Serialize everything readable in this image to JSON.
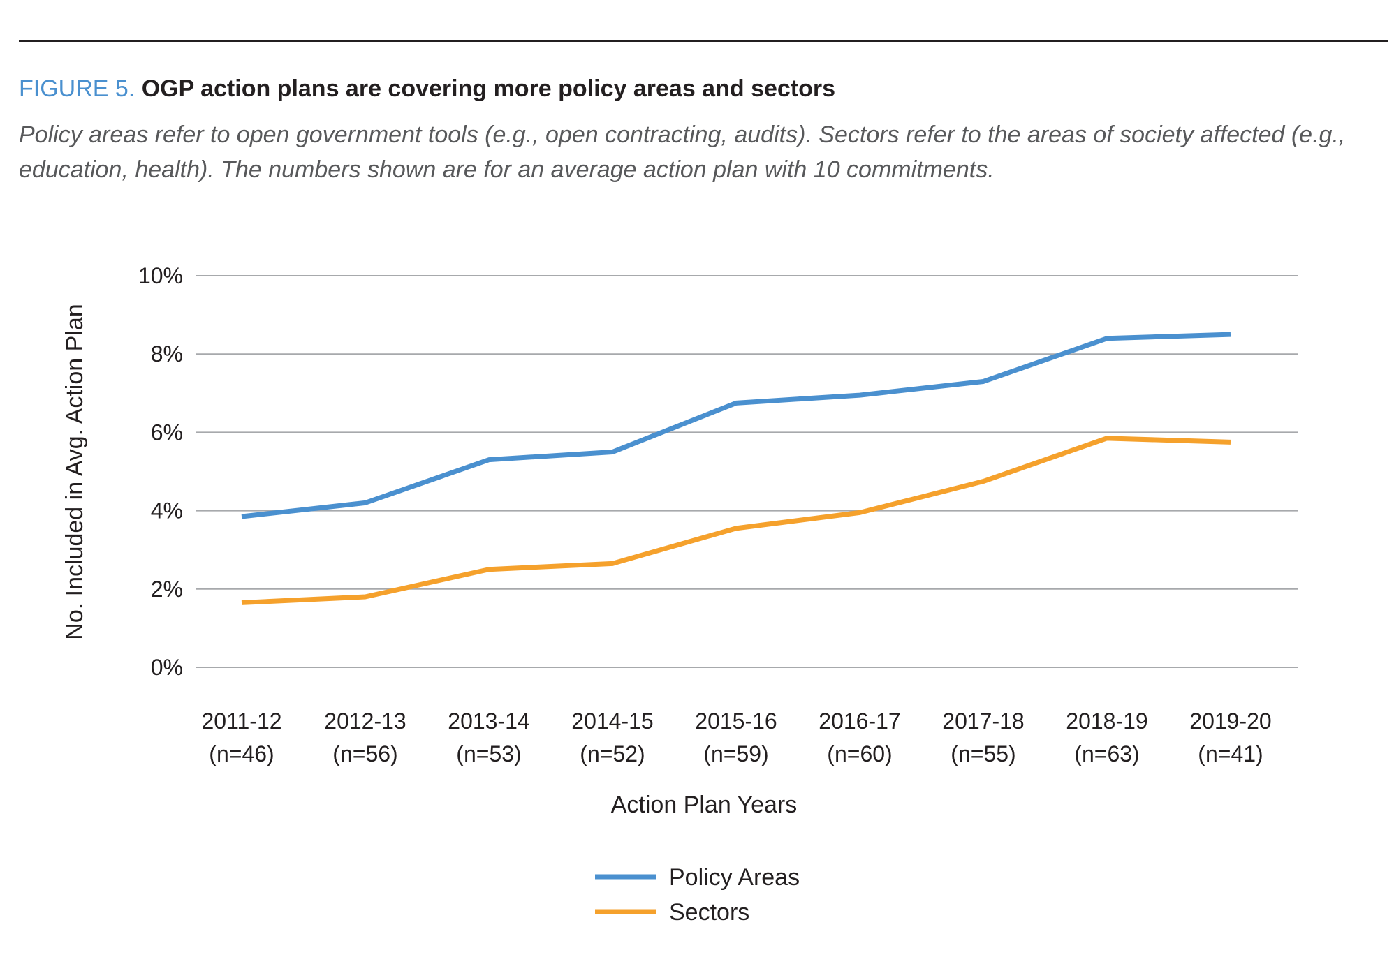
{
  "figure": {
    "label": "FIGURE 5.",
    "title": "OGP action plans are covering more policy areas and sectors",
    "subtitle": "Policy areas refer to open government tools (e.g., open contracting, audits). Sectors refer to the areas of society affected (e.g., education, health). The numbers shown are for an average action plan with 10 commitments."
  },
  "chart_data": {
    "type": "line",
    "xlabel": "Action Plan Years",
    "ylabel": "No. Included in Avg. Action Plan",
    "ylim": [
      0,
      10
    ],
    "yticks": [
      "0%",
      "2%",
      "4%",
      "6%",
      "8%",
      "10%"
    ],
    "grid": true,
    "legend": "bottom",
    "categories": [
      {
        "year": "2011-12",
        "n": "(n=46)"
      },
      {
        "year": "2012-13",
        "n": "(n=56)"
      },
      {
        "year": "2013-14",
        "n": "(n=53)"
      },
      {
        "year": "2014-15",
        "n": "(n=52)"
      },
      {
        "year": "2015-16",
        "n": "(n=59)"
      },
      {
        "year": "2016-17",
        "n": "(n=60)"
      },
      {
        "year": "2017-18",
        "n": "(n=55)"
      },
      {
        "year": "2018-19",
        "n": "(n=63)"
      },
      {
        "year": "2019-20",
        "n": "(n=41)"
      }
    ],
    "series": [
      {
        "name": "Policy Areas",
        "color": "#4a90cf",
        "values": [
          3.85,
          4.2,
          5.3,
          5.5,
          6.75,
          6.95,
          7.3,
          8.4,
          8.5
        ]
      },
      {
        "name": "Sectors",
        "color": "#f5a12c",
        "values": [
          1.65,
          1.8,
          2.5,
          2.65,
          3.55,
          3.95,
          4.75,
          5.85,
          5.75
        ]
      }
    ]
  }
}
